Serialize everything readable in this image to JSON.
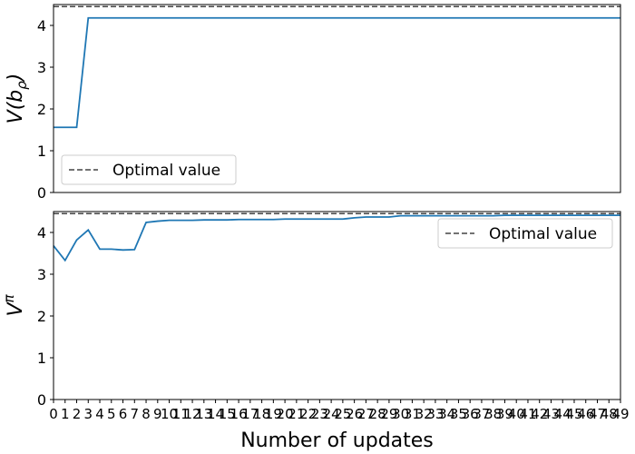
{
  "chart_data": [
    {
      "type": "line",
      "ylabel": "V(b_ρ)",
      "ylabel_main": "V(b",
      "ylabel_sub": "ρ",
      "ylabel_close": ")",
      "ylim": [
        0,
        4.5
      ],
      "yticks": [
        0,
        1,
        2,
        3,
        4
      ],
      "xlim": [
        0,
        49
      ],
      "show_xticks": false,
      "legend": {
        "placement": "lower-left",
        "entries": [
          "Optimal value"
        ]
      },
      "optimal_value": 4.45,
      "series": [
        {
          "color": "#1f77b4",
          "x": [
            0,
            1,
            2,
            3,
            49
          ],
          "y": [
            1.56,
            1.56,
            1.56,
            4.18,
            4.18
          ]
        }
      ]
    },
    {
      "type": "line",
      "ylabel": "V^π",
      "ylabel_main": "V",
      "ylabel_sup": "π",
      "ylim": [
        0,
        4.5
      ],
      "yticks": [
        0,
        1,
        2,
        3,
        4
      ],
      "xlim": [
        0,
        49
      ],
      "xlabel": "Number of updates",
      "xticks": [
        0,
        1,
        2,
        3,
        4,
        5,
        6,
        7,
        8,
        9,
        10,
        11,
        12,
        13,
        14,
        15,
        16,
        17,
        18,
        19,
        20,
        21,
        22,
        23,
        24,
        25,
        26,
        27,
        28,
        29,
        30,
        31,
        32,
        33,
        34,
        35,
        36,
        37,
        38,
        39,
        40,
        41,
        42,
        43,
        44,
        45,
        46,
        47,
        48,
        49
      ],
      "legend": {
        "placement": "upper-right",
        "entries": [
          "Optimal value"
        ]
      },
      "optimal_value": 4.45,
      "series": [
        {
          "color": "#1f77b4",
          "x": [
            0,
            1,
            2,
            3,
            4,
            5,
            6,
            7,
            8,
            9,
            10,
            11,
            12,
            13,
            14,
            15,
            16,
            17,
            18,
            19,
            20,
            21,
            22,
            23,
            24,
            25,
            26,
            27,
            28,
            29,
            30,
            31,
            32,
            33,
            34,
            35,
            36,
            37,
            38,
            39,
            40,
            41,
            42,
            43,
            44,
            45,
            46,
            47,
            48,
            49
          ],
          "y": [
            3.68,
            3.33,
            3.82,
            4.06,
            3.6,
            3.6,
            3.58,
            3.59,
            4.24,
            4.27,
            4.29,
            4.29,
            4.29,
            4.3,
            4.3,
            4.3,
            4.31,
            4.31,
            4.31,
            4.31,
            4.32,
            4.32,
            4.32,
            4.32,
            4.32,
            4.32,
            4.35,
            4.37,
            4.37,
            4.37,
            4.4,
            4.4,
            4.4,
            4.4,
            4.4,
            4.4,
            4.4,
            4.4,
            4.4,
            4.41,
            4.41,
            4.41,
            4.41,
            4.41,
            4.41,
            4.41,
            4.41,
            4.41,
            4.41,
            4.41
          ]
        }
      ]
    }
  ],
  "colors": {
    "series": "#1f77b4",
    "optimal": "#444444"
  }
}
